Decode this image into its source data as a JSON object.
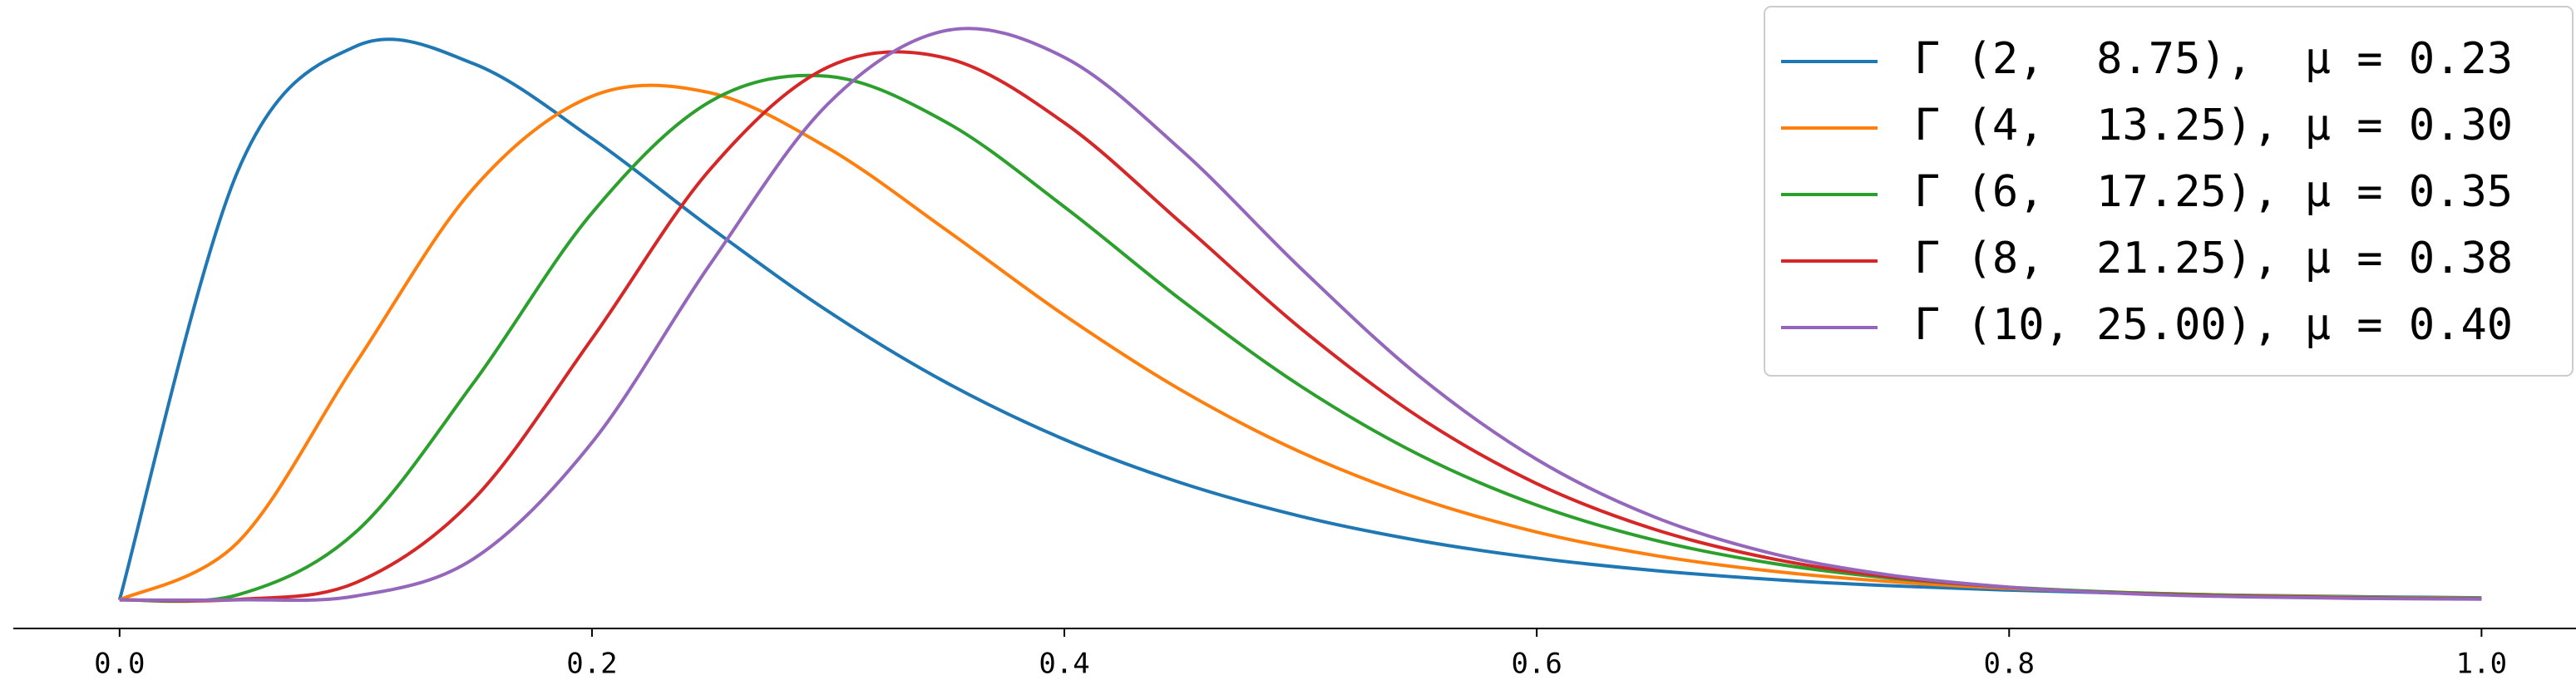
{
  "chart_data": {
    "type": "line",
    "x": [
      0,
      0.05,
      0.1,
      0.15,
      0.2,
      0.25,
      0.3,
      0.35,
      0.4,
      0.45,
      0.5,
      0.55,
      0.6,
      0.65,
      0.7,
      0.75,
      0.8,
      0.85,
      0.9,
      0.95,
      1.0
    ],
    "series": [
      {
        "name": "Γ (2,  8.75),  μ = 0.23",
        "color": "#1f77b4",
        "values": [
          0,
          2.471,
          3.192,
          3.091,
          2.661,
          2.148,
          1.664,
          1.253,
          0.925,
          0.672,
          0.482,
          0.342,
          0.241,
          0.169,
          0.117,
          0.081,
          0.056,
          0.038,
          0.026,
          0.018,
          0.012
        ]
      },
      {
        "name": "Γ (4,  13.25), μ = 0.30",
        "color": "#ff7f0e",
        "values": [
          0,
          0.331,
          1.365,
          2.375,
          2.904,
          2.924,
          2.605,
          2.133,
          1.641,
          1.205,
          0.852,
          0.585,
          0.391,
          0.256,
          0.165,
          0.105,
          0.066,
          0.041,
          0.025,
          0.015,
          0.009
        ]
      },
      {
        "name": "Γ (6,  17.25), μ = 0.35",
        "color": "#2ca02c",
        "values": [
          0,
          0.029,
          0.391,
          1.254,
          2.231,
          2.873,
          3.019,
          2.754,
          2.266,
          1.724,
          1.233,
          0.838,
          0.546,
          0.344,
          0.21,
          0.125,
          0.073,
          0.042,
          0.023,
          0.013,
          0.007
        ]
      },
      {
        "name": "Γ (8,  21.25), μ = 0.38",
        "color": "#d62728",
        "values": [
          0,
          0.002,
          0.099,
          0.582,
          1.506,
          2.482,
          3.073,
          3.124,
          2.751,
          2.167,
          1.566,
          1.055,
          0.67,
          0.406,
          0.236,
          0.132,
          0.072,
          0.038,
          0.02,
          0.01,
          0.005
        ]
      },
      {
        "name": "Γ (10, 25.00), μ = 0.40",
        "color": "#9467bd",
        "values": [
          0,
          0,
          0.022,
          0.238,
          0.907,
          1.935,
          2.861,
          3.283,
          3.128,
          2.587,
          1.913,
          1.292,
          0.81,
          0.477,
          0.266,
          0.142,
          0.073,
          0.036,
          0.017,
          0.008,
          0.004
        ]
      }
    ],
    "xlim": [
      -0.045,
      1.04
    ],
    "ylim": [
      -0.165,
      3.459
    ],
    "xticks": [
      {
        "value": 0,
        "label": "0.0"
      },
      0.2,
      0.4,
      0.6,
      0.8,
      {
        "value": 1,
        "label": "1.0"
      }
    ],
    "legend": "upper right"
  }
}
